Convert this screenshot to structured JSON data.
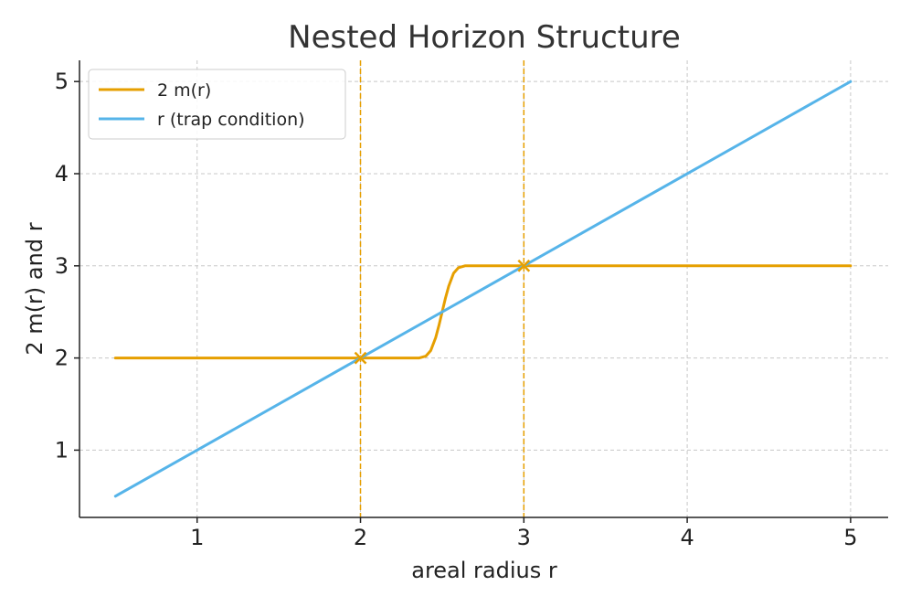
{
  "chart_data": {
    "type": "line",
    "title": "Nested Horizon Structure",
    "xlabel": "areal radius r",
    "ylabel": "2 m(r) and r",
    "xlim": [
      0.28,
      5.23
    ],
    "ylim": [
      0.27,
      5.23
    ],
    "x_ticks": [
      1,
      2,
      3,
      4,
      5
    ],
    "y_ticks": [
      1,
      2,
      3,
      4,
      5
    ],
    "grid": true,
    "legend_position": "top-left",
    "series": [
      {
        "name": "2 m(r)",
        "color": "#E69F00",
        "x": [
          0.5,
          2.0,
          2.36,
          2.4,
          2.43,
          2.46,
          2.48,
          2.5,
          2.52,
          2.54,
          2.57,
          2.6,
          2.64,
          3.0,
          5.0
        ],
        "y": [
          2.0,
          2.0,
          2.0,
          2.02,
          2.08,
          2.22,
          2.35,
          2.5,
          2.65,
          2.78,
          2.92,
          2.98,
          3.0,
          3.0,
          3.0
        ]
      },
      {
        "name": "r (trap condition)",
        "color": "#56B4E9",
        "x": [
          0.5,
          5.0
        ],
        "y": [
          0.5,
          5.0
        ]
      }
    ],
    "horizon_markers": [
      {
        "x": 2,
        "y": 2
      },
      {
        "x": 3,
        "y": 3
      }
    ],
    "vertical_lines": [
      2,
      3
    ],
    "vertical_line_color": "#E69F00",
    "marker_color": "#E69F00"
  }
}
